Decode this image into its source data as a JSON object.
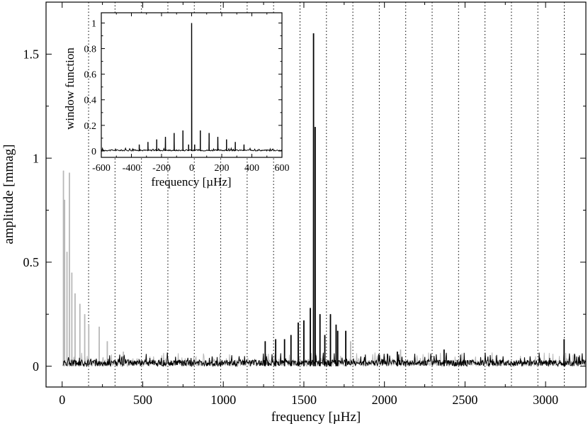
{
  "chart_data": [
    {
      "type": "line",
      "xlabel": "frequency [µHz]",
      "ylabel": "amplitude [mmag]",
      "xlim": [
        -100,
        3250
      ],
      "ylim": [
        -0.1,
        1.75
      ],
      "xticks": [
        0,
        500,
        1000,
        1500,
        2000,
        2500,
        3000
      ],
      "xtick_labels": [
        "0",
        "500",
        "1000",
        "1500",
        "2000",
        "2500",
        "3000"
      ],
      "yticks": [
        0,
        0.5,
        1,
        1.5
      ],
      "ytick_labels": [
        "0",
        "0.5",
        "1",
        "1.5"
      ],
      "grid": false,
      "vertical_dotted_lines_x": [
        164,
        328,
        492,
        656,
        820,
        984,
        1148,
        1312,
        1476,
        1640,
        1804,
        1968,
        2132,
        2296,
        2460,
        2624,
        2788,
        2952,
        3116
      ],
      "series": [
        {
          "color": "#b8b8b8",
          "noise_level": 0.03,
          "peaks": [
            {
              "x": 8,
              "y": 0.94
            },
            {
              "x": 15,
              "y": 0.8
            },
            {
              "x": 30,
              "y": 0.55
            },
            {
              "x": 45,
              "y": 0.93
            },
            {
              "x": 60,
              "y": 0.45
            },
            {
              "x": 80,
              "y": 0.35
            },
            {
              "x": 110,
              "y": 0.3
            },
            {
              "x": 140,
              "y": 0.25
            },
            {
              "x": 165,
              "y": 0.2
            },
            {
              "x": 230,
              "y": 0.19
            },
            {
              "x": 280,
              "y": 0.12
            },
            {
              "x": 380,
              "y": 0.07
            },
            {
              "x": 1790,
              "y": 0.12
            },
            {
              "x": 2100,
              "y": 0.08
            }
          ]
        },
        {
          "color": "#000000",
          "noise_level": 0.03,
          "peaks": [
            {
              "x": 1560,
              "y": 1.6
            },
            {
              "x": 1570,
              "y": 1.15
            },
            {
              "x": 1540,
              "y": 0.28
            },
            {
              "x": 1600,
              "y": 0.25
            },
            {
              "x": 1665,
              "y": 0.25
            },
            {
              "x": 1500,
              "y": 0.22
            },
            {
              "x": 1465,
              "y": 0.21
            },
            {
              "x": 1700,
              "y": 0.2
            },
            {
              "x": 1710,
              "y": 0.17
            },
            {
              "x": 1760,
              "y": 0.17
            },
            {
              "x": 1420,
              "y": 0.15
            },
            {
              "x": 1380,
              "y": 0.13
            },
            {
              "x": 1325,
              "y": 0.13
            },
            {
              "x": 1260,
              "y": 0.12
            },
            {
              "x": 1630,
              "y": 0.15
            },
            {
              "x": 3115,
              "y": 0.13
            },
            {
              "x": 2370,
              "y": 0.08
            },
            {
              "x": 2080,
              "y": 0.07
            }
          ]
        }
      ]
    },
    {
      "type": "line",
      "xlabel": "frequency [µHz]",
      "ylabel": "window function",
      "xlim": [
        -600,
        600
      ],
      "ylim": [
        -0.05,
        1.08
      ],
      "xticks": [
        -600,
        -400,
        -200,
        0,
        200,
        400,
        600
      ],
      "xtick_labels": [
        "-600",
        "-400",
        "-200",
        "0",
        "200",
        "400",
        "600"
      ],
      "yticks": [
        0,
        0.2,
        0.4,
        0.6,
        0.8,
        1
      ],
      "ytick_labels": [
        "0",
        "0.2",
        "0.4",
        "0.6",
        "0.8",
        "1"
      ],
      "series": [
        {
          "color": "#000000",
          "peaks": [
            {
              "x": 0,
              "y": 1.0
            },
            {
              "x": -58,
              "y": 0.16
            },
            {
              "x": 58,
              "y": 0.16
            },
            {
              "x": -116,
              "y": 0.14
            },
            {
              "x": 116,
              "y": 0.14
            },
            {
              "x": -174,
              "y": 0.11
            },
            {
              "x": 174,
              "y": 0.11
            },
            {
              "x": -232,
              "y": 0.09
            },
            {
              "x": 232,
              "y": 0.09
            },
            {
              "x": -290,
              "y": 0.07
            },
            {
              "x": 290,
              "y": 0.07
            },
            {
              "x": -348,
              "y": 0.05
            },
            {
              "x": 348,
              "y": 0.05
            },
            {
              "x": -20,
              "y": 0.05
            },
            {
              "x": 20,
              "y": 0.05
            }
          ]
        }
      ]
    }
  ]
}
